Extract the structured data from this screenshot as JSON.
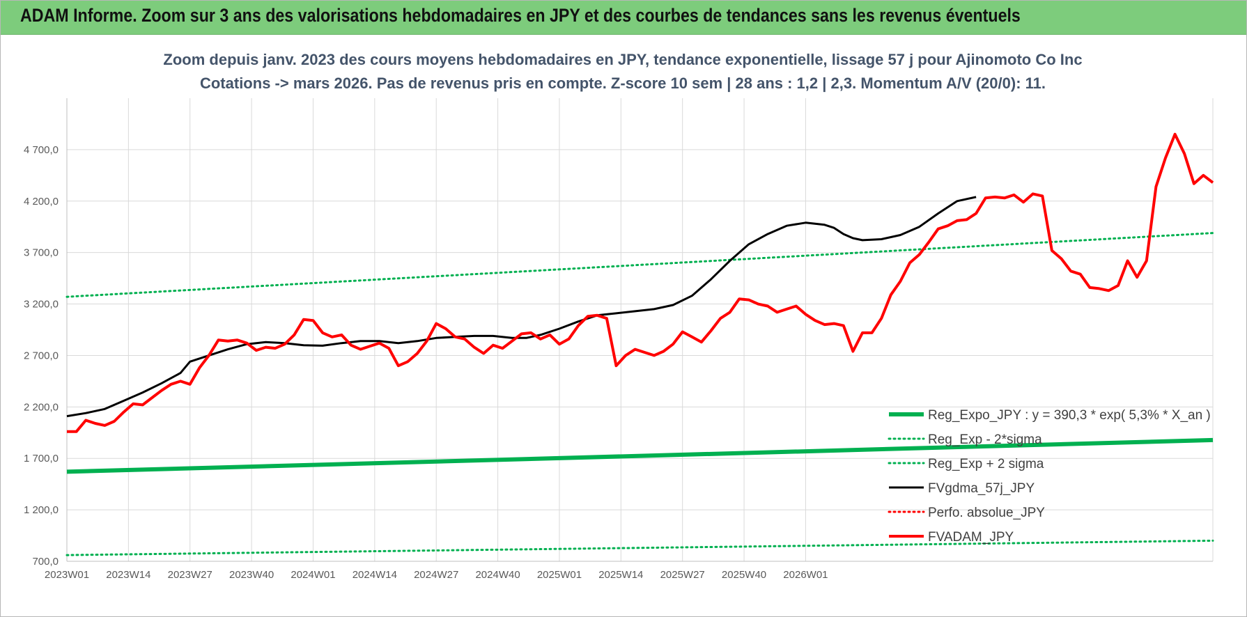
{
  "header": {
    "title": "ADAM Informe. Zoom sur 3 ans des valorisations hebdomadaires en JPY et des courbes de tendances sans les revenus éventuels"
  },
  "colors": {
    "header_bg": "#7dcc7c",
    "reg_expo": "#00b050",
    "gdma": "#000000",
    "adam": "#ff0000",
    "perfo": "#ff0000",
    "grid": "#d9d9d9",
    "subtitle": "#44546a"
  },
  "chart_data": {
    "type": "line",
    "title_line1": "Zoom depuis janv. 2023 des cours moyens hebdomadaires en JPY, tendance exponentielle, lissage 57 j pour Ajinomoto Co Inc",
    "title_line2": "Cotations -> mars 2026. Pas de revenus pris en compte. Z-score 10 sem | 28 ans : 1,2 | 2,3. Momentum A/V (20/0): 11.",
    "ylim": [
      700,
      5200
    ],
    "y_ticks": [
      "700,0",
      "1 200,0",
      "1 700,0",
      "2 200,0",
      "2 700,0",
      "3 200,0",
      "3 700,0",
      "4 200,0",
      "4 700,0"
    ],
    "y_tick_values": [
      700,
      1200,
      1700,
      2200,
      2700,
      3200,
      3700,
      4200,
      4700
    ],
    "x_ticks": [
      "2023W01",
      "2023W14",
      "2023W27",
      "2023W40",
      "2024W01",
      "2024W14",
      "2024W27",
      "2024W40",
      "2025W01",
      "2025W14",
      "2025W27",
      "2025W40",
      "2026W01"
    ],
    "x_tick_weeks": [
      0,
      13,
      26,
      39,
      52,
      65,
      78,
      91,
      104,
      117,
      130,
      143,
      156
    ],
    "x_max_week": 172,
    "grid": true,
    "legend_position": "bottom-right",
    "series": [
      {
        "name": "Reg_Expo_JPY : y = 390,3 * exp( 5,3% *  X_an )",
        "style": "solid-thick",
        "color": "#00b050",
        "points": [
          [
            0,
            1570
          ],
          [
            172,
            1878
          ]
        ]
      },
      {
        "name": "Reg_Exp - 2*sigma",
        "style": "dotted",
        "color": "#00b050",
        "points": [
          [
            0,
            760
          ],
          [
            172,
            900
          ]
        ]
      },
      {
        "name": "Reg_Exp + 2 sigma",
        "style": "dotted",
        "color": "#00b050",
        "points": [
          [
            0,
            3270
          ],
          [
            172,
            3890
          ]
        ]
      },
      {
        "name": "FVgdma_57j_JPY",
        "style": "solid",
        "color": "#000000",
        "points": [
          [
            0,
            2110
          ],
          [
            4,
            2140
          ],
          [
            8,
            2180
          ],
          [
            12,
            2260
          ],
          [
            16,
            2340
          ],
          [
            20,
            2430
          ],
          [
            24,
            2530
          ],
          [
            26,
            2640
          ],
          [
            30,
            2700
          ],
          [
            34,
            2760
          ],
          [
            38,
            2810
          ],
          [
            42,
            2830
          ],
          [
            46,
            2820
          ],
          [
            50,
            2800
          ],
          [
            54,
            2795
          ],
          [
            58,
            2820
          ],
          [
            62,
            2840
          ],
          [
            66,
            2840
          ],
          [
            70,
            2820
          ],
          [
            74,
            2840
          ],
          [
            78,
            2870
          ],
          [
            82,
            2880
          ],
          [
            86,
            2890
          ],
          [
            90,
            2890
          ],
          [
            94,
            2870
          ],
          [
            97,
            2870
          ],
          [
            100,
            2900
          ],
          [
            104,
            2960
          ],
          [
            108,
            3030
          ],
          [
            112,
            3090
          ],
          [
            116,
            3110
          ],
          [
            120,
            3130
          ],
          [
            124,
            3150
          ],
          [
            128,
            3190
          ],
          [
            132,
            3280
          ],
          [
            136,
            3440
          ],
          [
            140,
            3620
          ],
          [
            144,
            3780
          ],
          [
            148,
            3880
          ],
          [
            152,
            3960
          ],
          [
            156,
            3990
          ],
          [
            160,
            3970
          ],
          [
            162,
            3940
          ],
          [
            164,
            3880
          ],
          [
            166,
            3840
          ],
          [
            168,
            3820
          ],
          [
            172,
            3830
          ],
          [
            176,
            3870
          ],
          [
            180,
            3950
          ],
          [
            184,
            4080
          ],
          [
            188,
            4200
          ],
          [
            190,
            4220
          ],
          [
            192,
            4240
          ]
        ]
      },
      {
        "name": "Perfo. absolue_JPY",
        "style": "dotted",
        "color": "#ff0000",
        "points": []
      },
      {
        "name": "FVADAM_JPY",
        "style": "solid-thick",
        "color": "#ff0000",
        "points": [
          [
            0,
            1960
          ],
          [
            2,
            1960
          ],
          [
            4,
            2070
          ],
          [
            6,
            2040
          ],
          [
            8,
            2020
          ],
          [
            10,
            2060
          ],
          [
            12,
            2150
          ],
          [
            14,
            2230
          ],
          [
            16,
            2220
          ],
          [
            18,
            2290
          ],
          [
            20,
            2360
          ],
          [
            22,
            2420
          ],
          [
            24,
            2450
          ],
          [
            26,
            2420
          ],
          [
            28,
            2580
          ],
          [
            30,
            2700
          ],
          [
            32,
            2850
          ],
          [
            34,
            2840
          ],
          [
            36,
            2850
          ],
          [
            38,
            2820
          ],
          [
            40,
            2750
          ],
          [
            42,
            2780
          ],
          [
            44,
            2770
          ],
          [
            46,
            2810
          ],
          [
            48,
            2900
          ],
          [
            50,
            3050
          ],
          [
            52,
            3040
          ],
          [
            54,
            2920
          ],
          [
            56,
            2880
          ],
          [
            58,
            2900
          ],
          [
            60,
            2800
          ],
          [
            62,
            2760
          ],
          [
            64,
            2790
          ],
          [
            66,
            2820
          ],
          [
            68,
            2770
          ],
          [
            70,
            2600
          ],
          [
            72,
            2640
          ],
          [
            74,
            2720
          ],
          [
            76,
            2840
          ],
          [
            78,
            3010
          ],
          [
            80,
            2960
          ],
          [
            82,
            2880
          ],
          [
            84,
            2860
          ],
          [
            86,
            2780
          ],
          [
            88,
            2720
          ],
          [
            90,
            2800
          ],
          [
            92,
            2770
          ],
          [
            94,
            2840
          ],
          [
            96,
            2910
          ],
          [
            98,
            2920
          ],
          [
            100,
            2860
          ],
          [
            102,
            2900
          ],
          [
            104,
            2810
          ],
          [
            106,
            2860
          ],
          [
            108,
            2990
          ],
          [
            110,
            3080
          ],
          [
            112,
            3090
          ],
          [
            114,
            3060
          ],
          [
            116,
            2600
          ],
          [
            118,
            2700
          ],
          [
            120,
            2760
          ],
          [
            122,
            2730
          ],
          [
            124,
            2700
          ],
          [
            126,
            2740
          ],
          [
            128,
            2810
          ],
          [
            130,
            2930
          ],
          [
            132,
            2880
          ],
          [
            134,
            2830
          ],
          [
            136,
            2940
          ],
          [
            138,
            3060
          ],
          [
            140,
            3120
          ],
          [
            142,
            3250
          ],
          [
            144,
            3240
          ],
          [
            146,
            3200
          ],
          [
            148,
            3180
          ],
          [
            150,
            3120
          ],
          [
            152,
            3150
          ],
          [
            154,
            3180
          ],
          [
            156,
            3100
          ],
          [
            158,
            3040
          ],
          [
            160,
            3000
          ],
          [
            162,
            3010
          ],
          [
            164,
            2990
          ],
          [
            166,
            2740
          ],
          [
            168,
            2920
          ],
          [
            170,
            2920
          ],
          [
            172,
            3060
          ]
        ]
      }
    ]
  },
  "chart_data_extra": {
    "adam_tail_points": [
      [
        172,
        3060
      ],
      [
        174,
        3290
      ],
      [
        176,
        3420
      ],
      [
        178,
        3600
      ],
      [
        180,
        3680
      ],
      [
        182,
        3800
      ],
      [
        184,
        3930
      ],
      [
        186,
        3960
      ],
      [
        188,
        4010
      ],
      [
        190,
        4020
      ],
      [
        192,
        4080
      ],
      [
        194,
        4230
      ],
      [
        196,
        4240
      ],
      [
        198,
        4230
      ],
      [
        200,
        4260
      ],
      [
        202,
        4190
      ],
      [
        204,
        4270
      ],
      [
        206,
        4250
      ],
      [
        208,
        3720
      ],
      [
        210,
        3640
      ],
      [
        212,
        3520
      ],
      [
        214,
        3490
      ],
      [
        216,
        3360
      ],
      [
        218,
        3350
      ],
      [
        220,
        3330
      ],
      [
        222,
        3380
      ],
      [
        224,
        3620
      ],
      [
        226,
        3460
      ],
      [
        228,
        3620
      ],
      [
        230,
        4340
      ],
      [
        232,
        4620
      ],
      [
        234,
        4850
      ],
      [
        236,
        4660
      ],
      [
        238,
        4370
      ],
      [
        240,
        4450
      ],
      [
        242,
        4380
      ]
    ],
    "gdma_tail_points": [
      [
        192,
        4240
      ],
      [
        196,
        4270
      ],
      [
        200,
        4300
      ],
      [
        204,
        4330
      ],
      [
        208,
        4360
      ],
      [
        212,
        4390
      ],
      [
        216,
        4420
      ],
      [
        220,
        4440
      ],
      [
        224,
        4460
      ],
      [
        228,
        4480
      ],
      [
        232,
        4500
      ],
      [
        236,
        4520
      ],
      [
        240,
        4540
      ],
      [
        242,
        4550
      ]
    ],
    "x_max_week_extended": 242
  }
}
